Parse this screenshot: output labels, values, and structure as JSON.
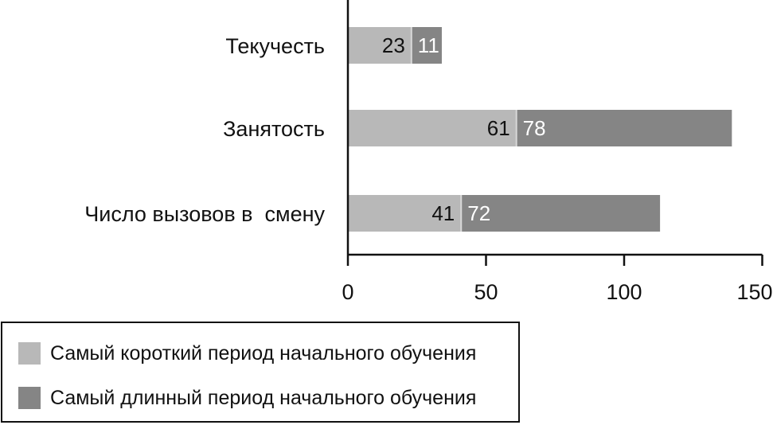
{
  "chart_data": {
    "type": "bar",
    "orientation": "horizontal",
    "stacked": true,
    "categories": [
      "Текучесть",
      "Занятость",
      "Число вызовов в  смену"
    ],
    "series": [
      {
        "name": "Самый короткий период начального обучения",
        "values": [
          23,
          61,
          41
        ],
        "color": "#b8b8b8",
        "label_color": "#111111"
      },
      {
        "name": "Самый длинный период начального обучения",
        "values": [
          11,
          78,
          72
        ],
        "color": "#858585",
        "label_color": "#ffffff"
      }
    ],
    "xlim": [
      0,
      150
    ],
    "xticks": [
      "0",
      "50",
      "100",
      "150"
    ],
    "tick_values": [
      0,
      50,
      100,
      150
    ],
    "grid": false,
    "legend_position": "bottom-left",
    "title": "",
    "xlabel": "",
    "ylabel": ""
  }
}
